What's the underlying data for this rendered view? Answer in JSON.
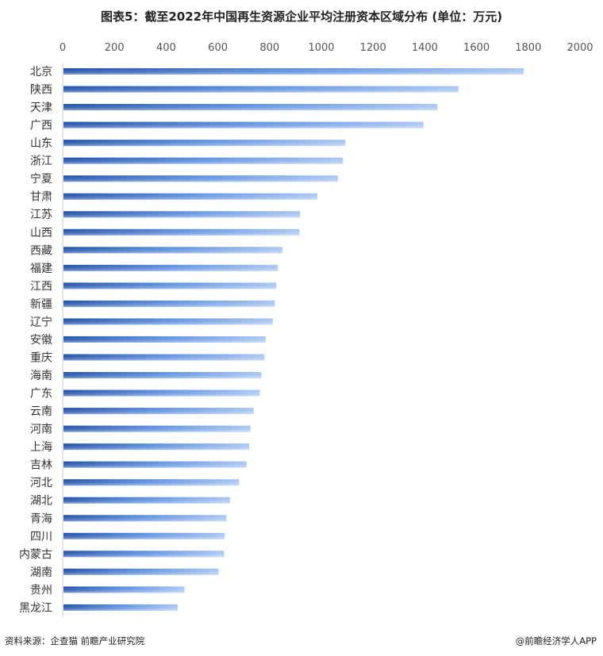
{
  "chart_data": {
    "type": "bar",
    "orientation": "horizontal",
    "title": "图表5：截至2022年中国再生资源企业平均注册资本区域分布 (单位：万元)",
    "categories": [
      "北京",
      "陕西",
      "天津",
      "广西",
      "山东",
      "浙江",
      "宁夏",
      "甘肃",
      "江苏",
      "山西",
      "西藏",
      "福建",
      "江西",
      "新疆",
      "辽宁",
      "安徽",
      "重庆",
      "海南",
      "广东",
      "云南",
      "河南",
      "上海",
      "吉林",
      "河北",
      "湖北",
      "青海",
      "四川",
      "内蒙古",
      "湖南",
      "贵州",
      "黑龙江"
    ],
    "values": [
      1779,
      1527,
      1446,
      1392,
      1090,
      1081,
      1061,
      982,
      915,
      912,
      846,
      829,
      823,
      817,
      809,
      782,
      777,
      765,
      759,
      735,
      723,
      718,
      708,
      679,
      644,
      630,
      623,
      621,
      600,
      468,
      442
    ],
    "xlim": [
      0,
      2000
    ],
    "xticks": [
      "0",
      "200",
      "400",
      "600",
      "800",
      "1000",
      "1200",
      "1400",
      "1600",
      "1800",
      "2000"
    ],
    "axis_position": "top",
    "grid": false,
    "colors": {
      "bar_start": "#1f4fa8",
      "bar_mid": "#5b8fe0",
      "bar_end": "#a9c6f2"
    }
  },
  "footer": {
    "source": "资料来源：企查猫 前瞻产业研究院",
    "credit": "@前瞻经济学人APP"
  },
  "watermark": "前瞻产业研究院"
}
